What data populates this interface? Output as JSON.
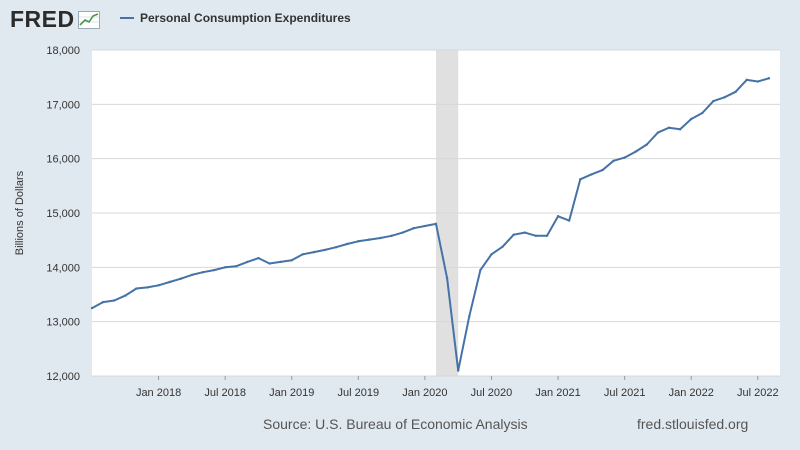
{
  "header": {
    "logo_text": "FRED",
    "legend_label": "Personal Consumption Expenditures"
  },
  "footer": {
    "source": "Source: U.S. Bureau of Economic Analysis",
    "site": "fred.stlouisfed.org"
  },
  "colors": {
    "series": "#4572a7",
    "recession": "#e0e0e0",
    "grid": "#d8d8d8",
    "background": "#e1e9f0",
    "plot": "#ffffff"
  },
  "chart_data": {
    "type": "line",
    "title": "",
    "xlabel": "",
    "ylabel": "Billions of Dollars",
    "ylim": [
      12000,
      18000
    ],
    "xlim": [
      "2017-07",
      "2022-09"
    ],
    "yticks": [
      12000,
      13000,
      14000,
      15000,
      16000,
      17000,
      18000
    ],
    "ytick_labels": [
      "12,000",
      "13,000",
      "14,000",
      "15,000",
      "16,000",
      "17,000",
      "18,000"
    ],
    "xticks": [
      {
        "date": "2018-01",
        "label": "Jan 2018"
      },
      {
        "date": "2018-07",
        "label": "Jul 2018"
      },
      {
        "date": "2019-01",
        "label": "Jan 2019"
      },
      {
        "date": "2019-07",
        "label": "Jul 2019"
      },
      {
        "date": "2020-01",
        "label": "Jan 2020"
      },
      {
        "date": "2020-07",
        "label": "Jul 2020"
      },
      {
        "date": "2021-01",
        "label": "Jan 2021"
      },
      {
        "date": "2021-07",
        "label": "Jul 2021"
      },
      {
        "date": "2022-01",
        "label": "Jan 2022"
      },
      {
        "date": "2022-07",
        "label": "Jul 2022"
      }
    ],
    "grid": true,
    "legend": "top-left",
    "recession": {
      "start": "2020-02",
      "end": "2020-04"
    },
    "series": [
      {
        "name": "Personal Consumption Expenditures",
        "x": [
          "2017-07",
          "2017-08",
          "2017-09",
          "2017-10",
          "2017-11",
          "2017-12",
          "2018-01",
          "2018-02",
          "2018-03",
          "2018-04",
          "2018-05",
          "2018-06",
          "2018-07",
          "2018-08",
          "2018-09",
          "2018-10",
          "2018-11",
          "2018-12",
          "2019-01",
          "2019-02",
          "2019-03",
          "2019-04",
          "2019-05",
          "2019-06",
          "2019-07",
          "2019-08",
          "2019-09",
          "2019-10",
          "2019-11",
          "2019-12",
          "2020-01",
          "2020-02",
          "2020-03",
          "2020-04",
          "2020-05",
          "2020-06",
          "2020-07",
          "2020-08",
          "2020-09",
          "2020-10",
          "2020-11",
          "2020-12",
          "2021-01",
          "2021-02",
          "2021-03",
          "2021-04",
          "2021-05",
          "2021-06",
          "2021-07",
          "2021-08",
          "2021-09",
          "2021-10",
          "2021-11",
          "2021-12",
          "2022-01",
          "2022-02",
          "2022-03",
          "2022-04",
          "2022-05",
          "2022-06",
          "2022-07",
          "2022-08"
        ],
        "values": [
          13250,
          13360,
          13390,
          13480,
          13610,
          13630,
          13670,
          13730,
          13790,
          13860,
          13910,
          13950,
          14000,
          14020,
          14100,
          14170,
          14070,
          14100,
          14130,
          14240,
          14280,
          14320,
          14370,
          14430,
          14480,
          14510,
          14540,
          14580,
          14640,
          14720,
          14760,
          14800,
          13800,
          12100,
          13100,
          13950,
          14240,
          14380,
          14600,
          14640,
          14580,
          14580,
          14940,
          14860,
          15620,
          15710,
          15790,
          15960,
          16020,
          16130,
          16260,
          16480,
          16570,
          16540,
          16730,
          16840,
          17060,
          17130,
          17230,
          17450,
          17420,
          17480
        ]
      }
    ]
  }
}
